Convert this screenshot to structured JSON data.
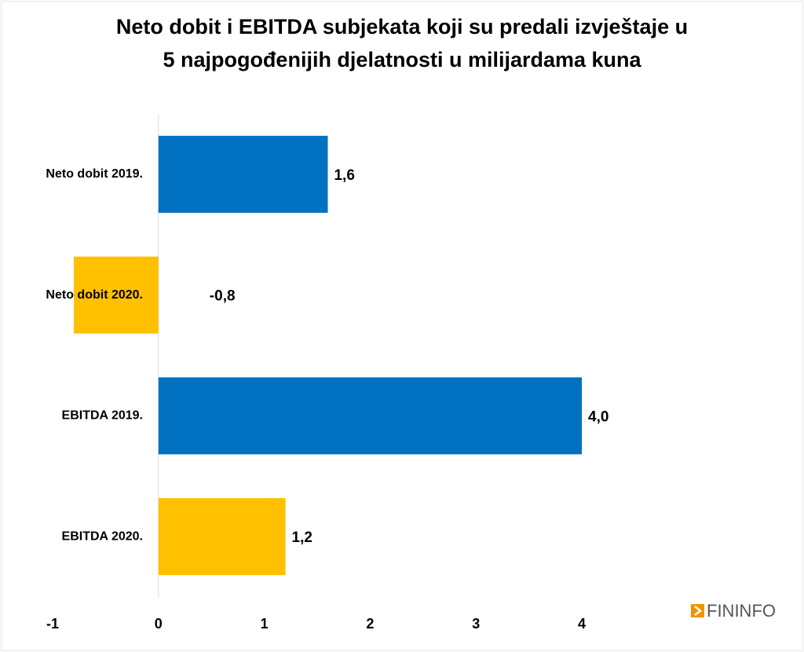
{
  "chart_data": {
    "type": "barh",
    "title": [
      "Neto dobit i EBITDA subjekata koji su predali izvještaje u",
      "5 najpogođenijih djelatnosti u milijardama kuna"
    ],
    "categories": [
      "Neto dobit 2019.",
      "Neto dobit 2020.",
      "EBITDA 2019.",
      "EBITDA 2020."
    ],
    "values": [
      1.6,
      -0.8,
      4.0,
      1.2
    ],
    "value_labels": [
      "1,6",
      "-0,8",
      "4,0",
      "1,2"
    ],
    "colors": [
      "#0070c0",
      "#ffc000",
      "#0070c0",
      "#ffc000"
    ],
    "xlim": [
      -1,
      4
    ],
    "xticks": [
      -1,
      0,
      1,
      2,
      3,
      4
    ],
    "logo": "FININFO"
  }
}
